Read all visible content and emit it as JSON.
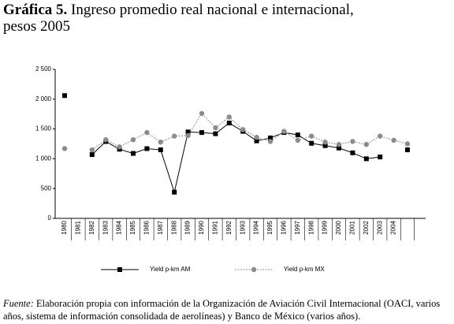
{
  "chart_data": {
    "type": "line",
    "title_prefix": "Gráfica 5.",
    "title": "Ingreso promedio real nacional e internacional,",
    "subtitle": "pesos 2005",
    "categories": [
      "1980",
      "1981",
      "1982",
      "1983",
      "1984",
      "1985",
      "1986",
      "1987",
      "1988",
      "1989",
      "1990",
      "1991",
      "1992",
      "1993",
      "1994",
      "1995",
      "1996",
      "1997",
      "1998",
      "1999",
      "2000",
      "2001",
      "2002",
      "2003",
      "2004",
      null
    ],
    "series": [
      {
        "name": "Yield p-km AM",
        "color": "#000000",
        "marker": "square",
        "dashed": false,
        "values": [
          2060,
          null,
          1070,
          1290,
          1160,
          1090,
          1170,
          1150,
          440,
          1450,
          1440,
          1420,
          1600,
          1460,
          1300,
          1350,
          1440,
          1400,
          1260,
          1220,
          1180,
          1100,
          1000,
          1030,
          null,
          1150
        ]
      },
      {
        "name": "Yield p-km MX",
        "color": "#8c8c8c",
        "marker": "circle",
        "dashed": true,
        "values": [
          1170,
          null,
          1150,
          1320,
          1200,
          1320,
          1440,
          1280,
          1380,
          1390,
          1760,
          1520,
          1700,
          1490,
          1360,
          1290,
          1460,
          1310,
          1380,
          1280,
          1240,
          1290,
          1240,
          1380,
          1310,
          1250
        ]
      }
    ],
    "ylim": [
      0,
      2500
    ],
    "yticks": [
      0,
      500,
      {
        "value": 1000,
        "label": "1 000"
      },
      {
        "value": 1500,
        "label": "1 500"
      },
      {
        "value": 2000,
        "label": "2 000"
      },
      {
        "value": 2500,
        "label": "2 500"
      }
    ],
    "source_label": "Fuente:",
    "source_text": "Elaboración propia con información de la Organización de Aviación Civil Internacional (OACI, varios años, sistema de información consolidada de aerolíneas) y Banco de México (varios años)."
  }
}
